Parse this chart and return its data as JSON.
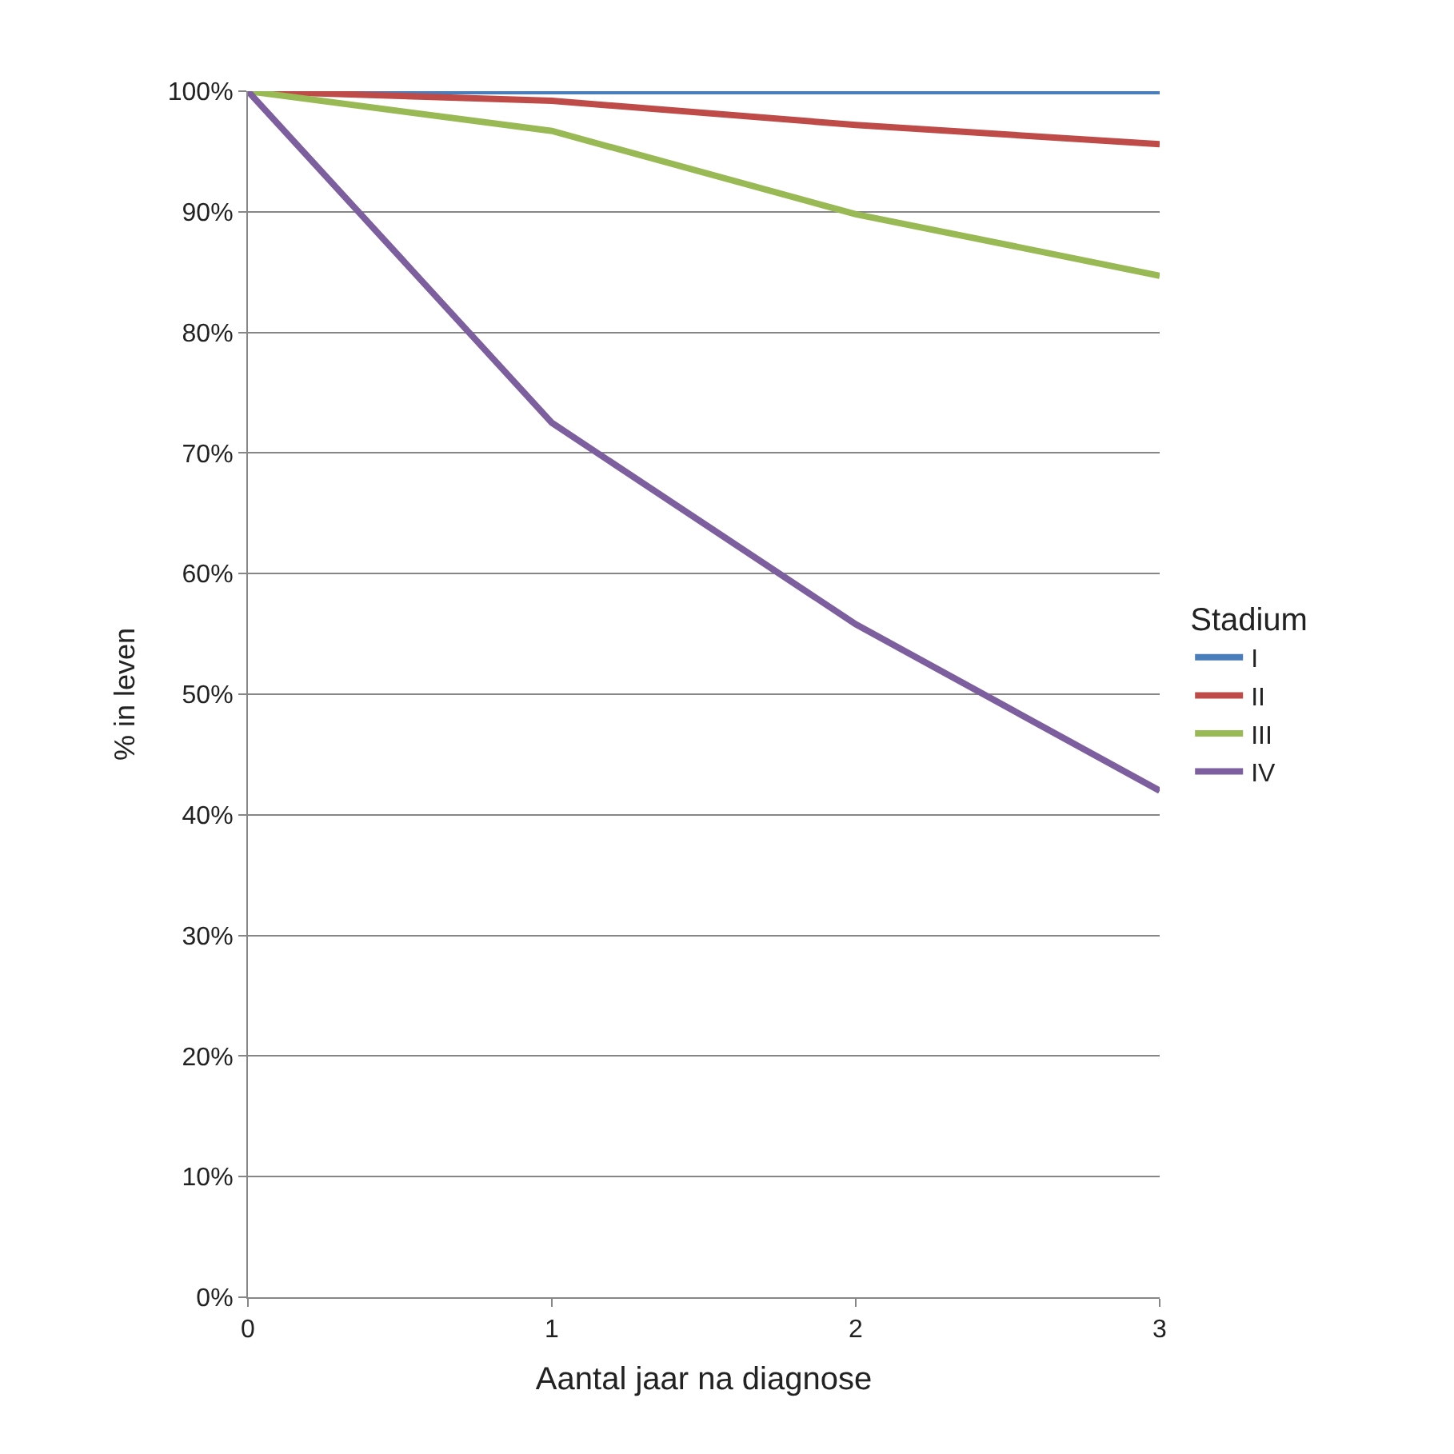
{
  "chart_data": {
    "type": "line",
    "xlabel": "Aantal jaar na diagnose",
    "ylabel": "% in leven",
    "legend_title": "Stadium",
    "legend": "right",
    "grid": "y",
    "marker": "none",
    "line_style": "solid",
    "x": [
      0,
      1,
      2,
      3
    ],
    "xlim": [
      0,
      3
    ],
    "xticks": [
      0,
      1,
      2,
      3
    ],
    "ylim": [
      0,
      100
    ],
    "yticks": [
      {
        "value": 0,
        "label": "0%"
      },
      {
        "value": 10,
        "label": "10%"
      },
      {
        "value": 20,
        "label": "20%"
      },
      {
        "value": 30,
        "label": "30%"
      },
      {
        "value": 40,
        "label": "40%"
      },
      {
        "value": 50,
        "label": "50%"
      },
      {
        "value": 60,
        "label": "60%"
      },
      {
        "value": 70,
        "label": "70%"
      },
      {
        "value": 80,
        "label": "80%"
      },
      {
        "value": 90,
        "label": "90%"
      },
      {
        "value": 100,
        "label": "100%"
      }
    ],
    "series": [
      {
        "name": "I",
        "color": "#4a7ebb",
        "values": [
          100,
          100,
          100,
          100
        ]
      },
      {
        "name": "II",
        "color": "#be4b48",
        "values": [
          100,
          99.2,
          97.2,
          95.6
        ]
      },
      {
        "name": "III",
        "color": "#98b954",
        "values": [
          100,
          96.7,
          89.8,
          84.7
        ]
      },
      {
        "name": "IV",
        "color": "#7d5fa0",
        "values": [
          100,
          72.5,
          55.8,
          42.0
        ]
      }
    ]
  }
}
